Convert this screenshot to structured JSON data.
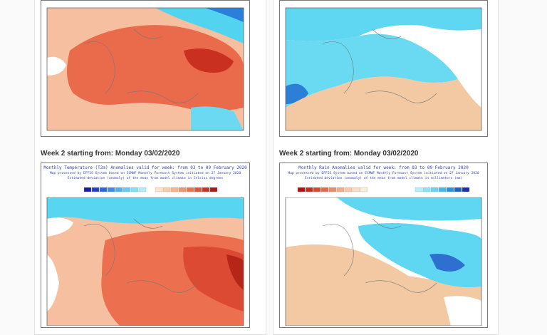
{
  "sections": [
    {
      "heading": "Week 2 starting from: Monday 03/02/2020",
      "map": {
        "title": "Monthly Temperature (T2m) Anomalies valid for week: from 03 to 09 February 2020",
        "subtitle": "Map processed by EFFIS System based on ECMWF Monthly Forecast System initiated on 27 January 2020",
        "note": "Estimated deviation (anomaly) of the mean from model climate in Celsius degrees"
      }
    },
    {
      "heading": "Week 2 starting from: Monday 03/02/2020",
      "map": {
        "title": "Monthly Rain Anomalies valid for week: from 03 to 09 February 2020",
        "subtitle": "Map processed by EFFIS System based on ECMWF Monthly Forecast System initiated on 27 January 2020",
        "note": "Estimated deviation (anomaly) of the mean from model climate in millimeters (mm)"
      }
    }
  ]
}
